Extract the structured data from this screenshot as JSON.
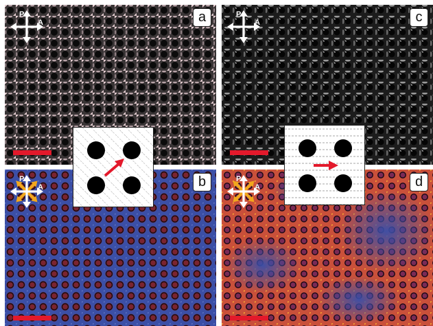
{
  "panels": [
    {
      "id": "a",
      "label": "a",
      "style": "grayscale-pink",
      "polarizer": "P",
      "analyzer": "A"
    },
    {
      "id": "b",
      "label": "b",
      "style": "blue-red",
      "polarizer": "P",
      "analyzer": "A"
    },
    {
      "id": "c",
      "label": "c",
      "style": "grayscale",
      "polarizer": "P",
      "analyzer": "A"
    },
    {
      "id": "d",
      "label": "d",
      "style": "blue-orange",
      "polarizer": "P",
      "analyzer": "A"
    }
  ],
  "insets": [
    {
      "id": "left",
      "hatch": "diagonal",
      "arrow": "diagonal",
      "pillars": 4
    },
    {
      "id": "right",
      "hatch": "horizontal",
      "arrow": "horizontal",
      "pillars": 4
    }
  ],
  "colors": {
    "scale_bar": "#e3192b",
    "arrow": "#e3192b",
    "polarizer_arrows": "#ffffff",
    "director_arrows": "#f2a81d",
    "blue_field": "#3a4fa8",
    "warm_field": "#e06a2c"
  }
}
